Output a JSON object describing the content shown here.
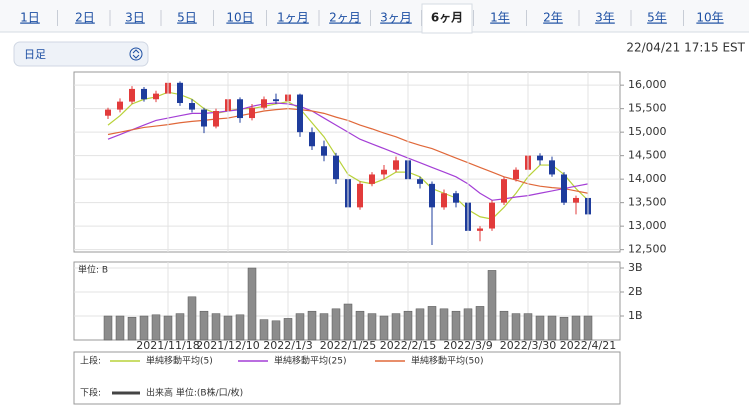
{
  "tabs": [
    "1日",
    "2日",
    "3日",
    "5日",
    "10日",
    "1ヶ月",
    "2ヶ月",
    "3ヶ月",
    "6ヶ月",
    "1年",
    "2年",
    "3年",
    "5年",
    "10年"
  ],
  "active_tab": 8,
  "period_select": "日足",
  "timestamp": "22/04/21 17:15 EST",
  "chart_data": [
    {
      "type": "candlestick",
      "legend_label": "上段:",
      "up_color": "#e23b3b",
      "down_color": "#1e3c9c",
      "open": [
        15350,
        15480,
        15650,
        15920,
        15700,
        15820,
        16050,
        15620,
        15480,
        15120,
        15450,
        15700,
        15300,
        15520,
        15700,
        15660,
        15800,
        15000,
        14700,
        14500,
        14000,
        13400,
        13900,
        14100,
        14200,
        14400,
        14000,
        13900,
        13400,
        13700,
        13500,
        12900,
        12950,
        13500,
        14000,
        14200,
        14500,
        14400,
        14100,
        13500,
        13600
      ],
      "high": [
        15520,
        15720,
        15980,
        15960,
        15880,
        16120,
        16080,
        15700,
        15520,
        15500,
        15760,
        15740,
        15600,
        15760,
        15820,
        15850,
        15820,
        15100,
        14820,
        14560,
        14080,
        13950,
        14150,
        14300,
        14480,
        14420,
        14050,
        13950,
        13780,
        13750,
        13550,
        13000,
        13550,
        14050,
        14250,
        14650,
        14550,
        14480,
        14150,
        13650,
        13700
      ],
      "low": [
        15280,
        15420,
        15600,
        15650,
        15640,
        15780,
        15560,
        15420,
        14980,
        15080,
        15400,
        15200,
        15250,
        15480,
        15600,
        15620,
        14900,
        14620,
        14380,
        13900,
        13150,
        13350,
        13850,
        14000,
        14150,
        13950,
        13800,
        12600,
        13350,
        13400,
        12650,
        12680,
        12900,
        13450,
        13950,
        14150,
        14300,
        14050,
        13450,
        13250,
        13100
      ],
      "close": [
        15480,
        15650,
        15920,
        15700,
        15820,
        16050,
        15620,
        15480,
        15120,
        15450,
        15700,
        15300,
        15520,
        15700,
        15660,
        15800,
        15000,
        14700,
        14500,
        14000,
        13400,
        13900,
        14100,
        14200,
        14400,
        14000,
        13900,
        13400,
        13700,
        13500,
        12900,
        12950,
        13500,
        14000,
        14200,
        14500,
        14400,
        14100,
        13500,
        13600,
        13250
      ],
      "series": [
        {
          "name": "単純移動平均(5)",
          "color": "#b9d23a",
          "values": [
            15150,
            15350,
            15600,
            15700,
            15750,
            15850,
            15800,
            15700,
            15500,
            15400,
            15450,
            15500,
            15500,
            15550,
            15600,
            15650,
            15500,
            15200,
            14900,
            14500,
            14100,
            13950,
            13900,
            14000,
            14150,
            14150,
            14050,
            13800,
            13700,
            13600,
            13350,
            13200,
            13150,
            13400,
            13700,
            14050,
            14300,
            14300,
            14100,
            13800,
            13550
          ]
        },
        {
          "name": "単純移動平均(25)",
          "color": "#a43fd6",
          "values": [
            14850,
            14950,
            15050,
            15150,
            15250,
            15300,
            15350,
            15400,
            15400,
            15420,
            15450,
            15480,
            15550,
            15600,
            15620,
            15600,
            15550,
            15450,
            15300,
            15150,
            15000,
            14850,
            14750,
            14650,
            14550,
            14450,
            14350,
            14250,
            14150,
            14050,
            13900,
            13700,
            13550,
            13580,
            13620,
            13650,
            13700,
            13750,
            13800,
            13850,
            13900
          ]
        },
        {
          "name": "単純移動平均(50)",
          "color": "#e0683a",
          "values": [
            14950,
            15000,
            15050,
            15100,
            15130,
            15160,
            15200,
            15230,
            15250,
            15280,
            15300,
            15350,
            15400,
            15450,
            15480,
            15500,
            15480,
            15450,
            15400,
            15320,
            15250,
            15150,
            15070,
            14980,
            14900,
            14800,
            14720,
            14650,
            14550,
            14450,
            14350,
            14250,
            14150,
            14050,
            13980,
            13900,
            13850,
            13820,
            13800,
            13750,
            13700
          ]
        }
      ],
      "ylim": [
        12450,
        16280
      ],
      "yticks": [
        {
          "value": 12500,
          "label": "12,500"
        },
        {
          "value": 13000,
          "label": "13,000"
        },
        {
          "value": 13500,
          "label": "13,500"
        },
        {
          "value": 14000,
          "label": "14,000"
        },
        {
          "value": 14500,
          "label": "14,500"
        },
        {
          "value": 15000,
          "label": "15,000"
        },
        {
          "value": 15500,
          "label": "15,500"
        },
        {
          "value": 16000,
          "label": "16,000"
        }
      ],
      "grid": true
    },
    {
      "type": "bar",
      "title": "単位: B",
      "legend_label": "下段:",
      "categories": [
        null,
        null,
        null,
        null,
        null,
        "2021/11/18",
        null,
        null,
        null,
        null,
        "2021/12/10",
        null,
        null,
        null,
        null,
        "2022/1/3",
        null,
        null,
        null,
        null,
        "2022/1/25",
        null,
        null,
        null,
        null,
        "2022/2/15",
        null,
        null,
        null,
        null,
        "2022/3/9",
        null,
        null,
        null,
        null,
        "2022/3/30",
        null,
        null,
        null,
        null,
        "2022/4/21"
      ],
      "series": [
        {
          "name": "出来高 単位:(B株/口/枚)",
          "color": "#8c8c8c",
          "values": [
            1.0,
            1.0,
            0.95,
            1.0,
            1.05,
            1.0,
            1.1,
            1.8,
            1.2,
            1.1,
            1.0,
            1.05,
            3.0,
            0.85,
            0.8,
            0.9,
            1.1,
            1.2,
            1.1,
            1.3,
            1.5,
            1.2,
            1.1,
            1.0,
            1.1,
            1.2,
            1.3,
            1.4,
            1.3,
            1.2,
            1.3,
            1.4,
            2.9,
            1.2,
            1.1,
            1.1,
            1.0,
            1.0,
            0.95,
            1.0,
            1.0
          ]
        }
      ],
      "ylim": [
        0,
        3.25
      ],
      "yticks": [
        {
          "value": 1,
          "label": "1B"
        },
        {
          "value": 2,
          "label": "2B"
        },
        {
          "value": 3,
          "label": "3B"
        }
      ],
      "grid": true
    }
  ]
}
